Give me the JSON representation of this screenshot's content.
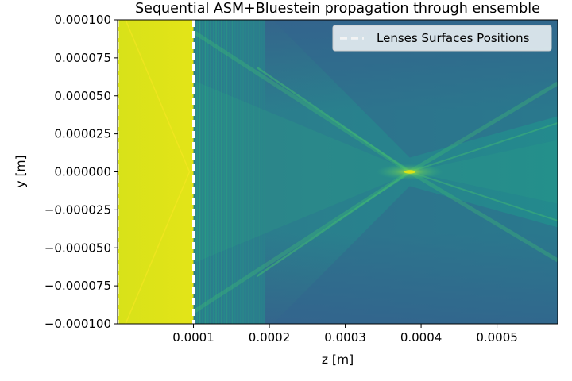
{
  "chart_data": {
    "type": "heatmap",
    "title": "Sequential ASM+Bluestein propagation through ensemble",
    "xlabel": "z [m]",
    "ylabel": "y [m]",
    "xlim": [
      0.0,
      0.00058
    ],
    "ylim": [
      -0.0001,
      0.0001
    ],
    "x_ticks": [
      {
        "value": 0.0001,
        "label": "0.0001"
      },
      {
        "value": 0.0002,
        "label": "0.0002"
      },
      {
        "value": 0.0003,
        "label": "0.0003"
      },
      {
        "value": 0.0004,
        "label": "0.0004"
      },
      {
        "value": 0.0005,
        "label": "0.0005"
      }
    ],
    "y_ticks": [
      {
        "value": 0.0001,
        "label": "0.000100"
      },
      {
        "value": 7.5e-05,
        "label": "0.000075"
      },
      {
        "value": 5e-05,
        "label": "0.000050"
      },
      {
        "value": 2.5e-05,
        "label": "0.000025"
      },
      {
        "value": 0.0,
        "label": "0.000000"
      },
      {
        "value": -2.5e-05,
        "label": "−0.000025"
      },
      {
        "value": -5e-05,
        "label": "−0.000050"
      },
      {
        "value": -7.5e-05,
        "label": "−0.000075"
      },
      {
        "value": -0.0001,
        "label": "−0.000100"
      }
    ],
    "lens_surfaces_z": [
      0.0,
      0.0001
    ],
    "focus_point": {
      "z": 0.000385,
      "y": 0.0
    },
    "colormap": "viridis",
    "legend": {
      "label": "Lenses Surfaces Positions",
      "placement": "upper right",
      "line_style": "dashed",
      "line_color": "#ffffff"
    },
    "grid": false
  }
}
